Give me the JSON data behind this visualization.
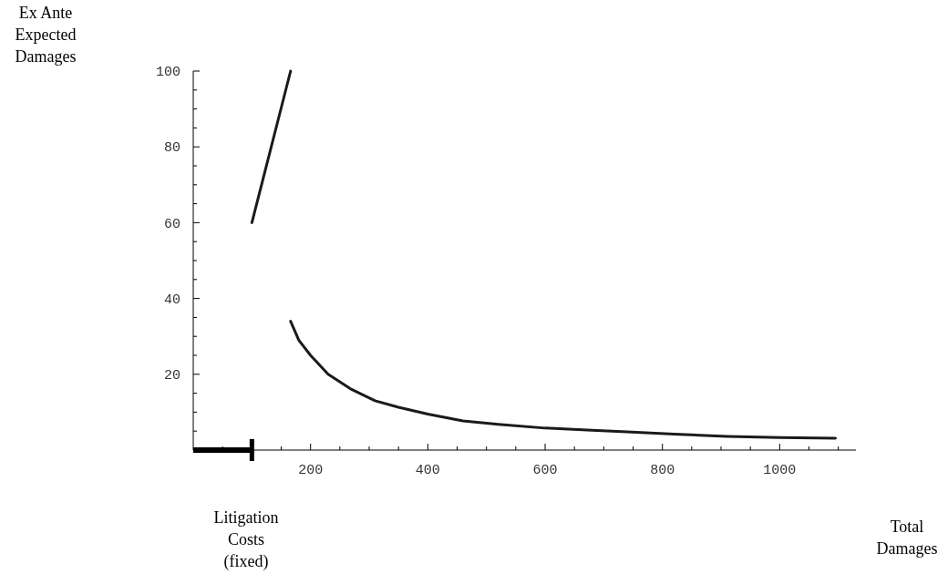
{
  "chart_data": {
    "type": "line",
    "ylabel": "Ex Ante Expected Damages",
    "xlabel": "Total Damages",
    "xlim": [
      0,
      1130
    ],
    "ylim": [
      0,
      100
    ],
    "xticks": [
      {
        "value": 50,
        "label": null
      },
      {
        "value": 100,
        "label": null
      },
      {
        "value": 150,
        "label": null
      },
      200,
      {
        "value": 250,
        "label": null
      },
      {
        "value": 300,
        "label": null
      },
      {
        "value": 350,
        "label": null
      },
      400,
      {
        "value": 450,
        "label": null
      },
      {
        "value": 500,
        "label": null
      },
      {
        "value": 550,
        "label": null
      },
      600,
      {
        "value": 650,
        "label": null
      },
      {
        "value": 700,
        "label": null
      },
      {
        "value": 750,
        "label": null
      },
      800,
      {
        "value": 850,
        "label": null
      },
      {
        "value": 900,
        "label": null
      },
      {
        "value": 950,
        "label": null
      },
      1000,
      {
        "value": 1050,
        "label": null
      },
      {
        "value": 1100,
        "label": null
      }
    ],
    "yticks": [
      {
        "value": 5,
        "label": null
      },
      {
        "value": 10,
        "label": null
      },
      {
        "value": 15,
        "label": null
      },
      20,
      {
        "value": 25,
        "label": null
      },
      {
        "value": 30,
        "label": null
      },
      {
        "value": 35,
        "label": null
      },
      40,
      {
        "value": 45,
        "label": null
      },
      {
        "value": 50,
        "label": null
      },
      {
        "value": 55,
        "label": null
      },
      60,
      {
        "value": 65,
        "label": null
      },
      {
        "value": 70,
        "label": null
      },
      {
        "value": 75,
        "label": null
      },
      80,
      {
        "value": 85,
        "label": null
      },
      {
        "value": 90,
        "label": null
      },
      {
        "value": 95,
        "label": null
      },
      100
    ],
    "grid": false,
    "marker": "none",
    "line_style": "solid",
    "series": [
      {
        "color": "#000000",
        "x": [
          0,
          100
        ],
        "values": [
          0,
          0
        ]
      },
      {
        "color": "#1a1a1a",
        "x": [
          100,
          166
        ],
        "values": [
          60,
          100
        ]
      },
      {
        "color": "#1a1a1a",
        "x": [
          166,
          180,
          200,
          230,
          270,
          310,
          350,
          400,
          460,
          520,
          600,
          680,
          740,
          820,
          910,
          1000,
          1095
        ],
        "values": [
          34,
          29,
          25,
          20,
          16,
          13,
          11.3,
          9.5,
          7.7,
          6.8,
          5.8,
          5.2,
          4.8,
          4.2,
          3.6,
          3.3,
          3.1
        ]
      }
    ],
    "annotations": [
      "Litigation Costs (fixed)"
    ]
  }
}
